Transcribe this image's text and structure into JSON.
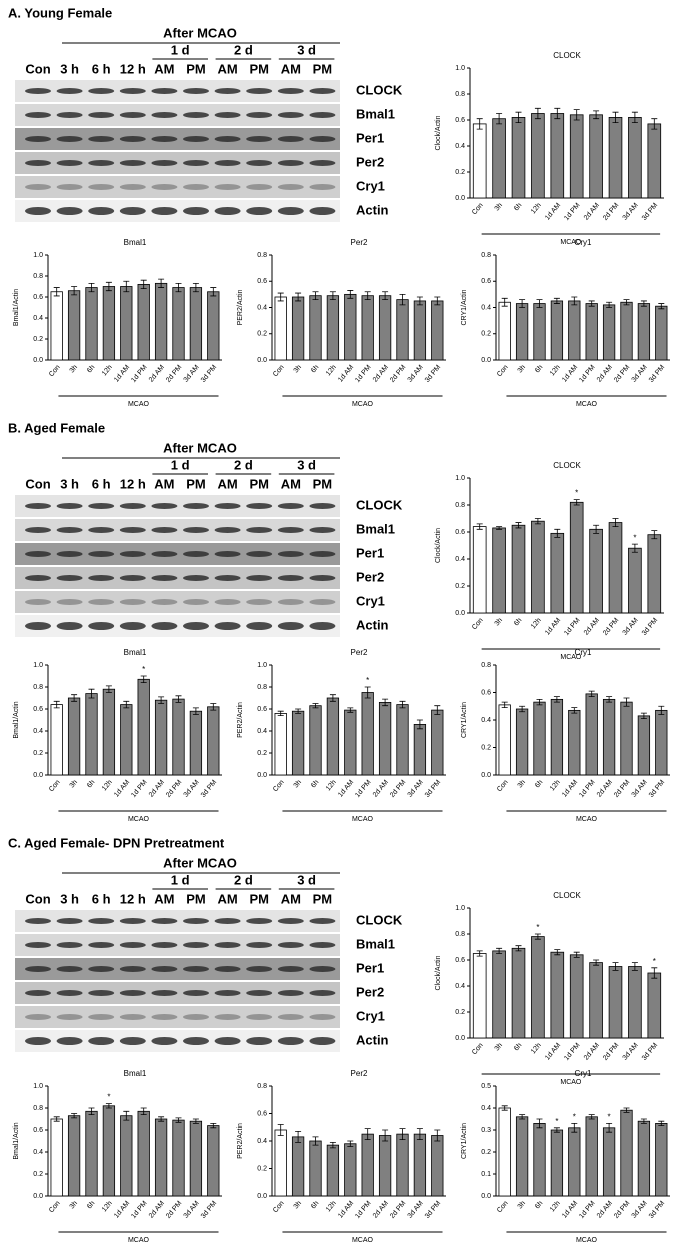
{
  "panels": [
    {
      "title": "A.  Young Female",
      "blot": {
        "header": "After MCAO",
        "days": [
          "1 d",
          "2 d",
          "3 d"
        ],
        "lanes": [
          "Con",
          "3 h",
          "6 h",
          "12 h",
          "AM",
          "PM",
          "AM",
          "PM",
          "AM",
          "PM"
        ],
        "rows": [
          "CLOCK",
          "Bmal1",
          "Per1",
          "Per2",
          "Cry1",
          "Actin"
        ]
      }
    },
    {
      "title": "B.  Aged Female",
      "blot": {
        "header": "After MCAO",
        "days": [
          "1 d",
          "2 d",
          "3 d"
        ],
        "lanes": [
          "Con",
          "3 h",
          "6 h",
          "12 h",
          "AM",
          "PM",
          "AM",
          "PM",
          "AM",
          "PM"
        ],
        "rows": [
          "CLOCK",
          "Bmal1",
          "Per1",
          "Per2",
          "Cry1",
          "Actin"
        ]
      }
    },
    {
      "title": "C.  Aged Female- DPN Pretreatment",
      "blot": {
        "header": "After MCAO",
        "days": [
          "1 d",
          "2 d",
          "3 d"
        ],
        "lanes": [
          "Con",
          "3 h",
          "6 h",
          "12 h",
          "AM",
          "PM",
          "AM",
          "PM",
          "AM",
          "PM"
        ],
        "rows": [
          "CLOCK",
          "Bmal1",
          "Per1",
          "Per2",
          "Cry1",
          "Actin"
        ]
      }
    }
  ],
  "chart_data": [
    {
      "type": "bar",
      "title": "CLOCK",
      "ylabel": "Clock/Actin",
      "group_label": "MCAO",
      "color": "#808080",
      "control_color": "#ffffff",
      "categories": [
        "Con",
        "3h",
        "6h",
        "12h",
        "1d AM",
        "1d PM",
        "2d AM",
        "2d PM",
        "3d AM",
        "3d PM"
      ],
      "values": [
        0.57,
        0.61,
        0.62,
        0.65,
        0.65,
        0.64,
        0.64,
        0.62,
        0.62,
        0.57
      ],
      "errors": [
        0.04,
        0.04,
        0.04,
        0.04,
        0.04,
        0.04,
        0.03,
        0.04,
        0.04,
        0.04
      ],
      "significance": [
        null,
        null,
        null,
        null,
        null,
        null,
        null,
        null,
        null,
        null
      ],
      "ylim": [
        0,
        1
      ],
      "yticks": [
        {
          "value": 0,
          "label": "0.0"
        },
        0.2,
        0.4,
        0.6,
        0.8,
        {
          "value": 1,
          "label": "1.0"
        }
      ]
    },
    {
      "type": "bar",
      "title": "Bmal1",
      "ylabel": "Bmal1/Actin",
      "group_label": "MCAO",
      "color": "#808080",
      "control_color": "#ffffff",
      "categories": [
        "Con",
        "3h",
        "6h",
        "12h",
        "1d AM",
        "1d PM",
        "2d AM",
        "2d PM",
        "3d AM",
        "3d PM"
      ],
      "values": [
        0.65,
        0.66,
        0.69,
        0.7,
        0.7,
        0.72,
        0.73,
        0.69,
        0.69,
        0.65
      ],
      "errors": [
        0.04,
        0.04,
        0.04,
        0.04,
        0.05,
        0.04,
        0.04,
        0.04,
        0.04,
        0.04
      ],
      "significance": [
        null,
        null,
        null,
        null,
        null,
        null,
        null,
        null,
        null,
        null
      ],
      "ylim": [
        0,
        1
      ],
      "yticks": [
        {
          "value": 0,
          "label": "0.0"
        },
        0.2,
        0.4,
        0.6,
        0.8,
        {
          "value": 1,
          "label": "1.0"
        }
      ]
    },
    {
      "type": "bar",
      "title": "Per2",
      "ylabel": "PER2/Actin",
      "group_label": "MCAO",
      "color": "#808080",
      "control_color": "#ffffff",
      "categories": [
        "Con",
        "3h",
        "6h",
        "12h",
        "1d AM",
        "1d PM",
        "2d AM",
        "2d PM",
        "3d AM",
        "3d PM"
      ],
      "values": [
        0.48,
        0.48,
        0.49,
        0.49,
        0.5,
        0.49,
        0.49,
        0.46,
        0.45,
        0.45
      ],
      "errors": [
        0.03,
        0.03,
        0.03,
        0.03,
        0.03,
        0.03,
        0.03,
        0.04,
        0.03,
        0.03
      ],
      "significance": [
        null,
        null,
        null,
        null,
        null,
        null,
        null,
        null,
        null,
        null
      ],
      "ylim": [
        0,
        0.8
      ],
      "yticks": [
        {
          "value": 0,
          "label": "0.0"
        },
        0.2,
        0.4,
        0.6,
        0.8
      ]
    },
    {
      "type": "bar",
      "title": "Cry1",
      "ylabel": "CRY1/Actin",
      "group_label": "MCAO",
      "color": "#808080",
      "control_color": "#ffffff",
      "categories": [
        "Con",
        "3h",
        "6h",
        "12h",
        "1d AM",
        "1d PM",
        "2d AM",
        "2d PM",
        "3d AM",
        "3d PM"
      ],
      "values": [
        0.44,
        0.43,
        0.43,
        0.45,
        0.45,
        0.43,
        0.42,
        0.44,
        0.43,
        0.41
      ],
      "errors": [
        0.03,
        0.03,
        0.03,
        0.02,
        0.03,
        0.02,
        0.02,
        0.02,
        0.02,
        0.02
      ],
      "significance": [
        null,
        null,
        null,
        null,
        null,
        null,
        null,
        null,
        null,
        null
      ],
      "ylim": [
        0,
        0.8
      ],
      "yticks": [
        {
          "value": 0,
          "label": "0.0"
        },
        0.2,
        0.4,
        0.6,
        0.8
      ]
    },
    {
      "type": "bar",
      "title": "CLOCK",
      "ylabel": "Clock/Actin",
      "group_label": "MCAO",
      "color": "#808080",
      "control_color": "#ffffff",
      "categories": [
        "Con",
        "3h",
        "6h",
        "12h",
        "1d AM",
        "1d PM",
        "2d AM",
        "2d PM",
        "3d AM",
        "3d PM"
      ],
      "values": [
        0.64,
        0.63,
        0.65,
        0.68,
        0.59,
        0.82,
        0.62,
        0.67,
        0.48,
        0.58
      ],
      "errors": [
        0.02,
        0.01,
        0.02,
        0.02,
        0.03,
        0.02,
        0.03,
        0.03,
        0.03,
        0.03
      ],
      "significance": [
        null,
        null,
        null,
        null,
        null,
        "*",
        null,
        null,
        "*",
        null
      ],
      "ylim": [
        0,
        1
      ],
      "yticks": [
        {
          "value": 0,
          "label": "0.0"
        },
        0.2,
        0.4,
        0.6,
        0.8,
        {
          "value": 1,
          "label": "1.0"
        }
      ]
    },
    {
      "type": "bar",
      "title": "Bmal1",
      "ylabel": "Bmal1/Actin",
      "group_label": "MCAO",
      "color": "#808080",
      "control_color": "#ffffff",
      "categories": [
        "Con",
        "3h",
        "6h",
        "12h",
        "1d AM",
        "1d PM",
        "2d AM",
        "2d PM",
        "3d AM",
        "3d PM"
      ],
      "values": [
        0.64,
        0.7,
        0.74,
        0.78,
        0.64,
        0.87,
        0.68,
        0.69,
        0.58,
        0.62
      ],
      "errors": [
        0.03,
        0.03,
        0.04,
        0.03,
        0.03,
        0.03,
        0.03,
        0.03,
        0.03,
        0.03
      ],
      "significance": [
        null,
        null,
        null,
        null,
        null,
        "*",
        null,
        null,
        null,
        null
      ],
      "ylim": [
        0,
        1
      ],
      "yticks": [
        {
          "value": 0,
          "label": "0.0"
        },
        0.2,
        0.4,
        0.6,
        0.8,
        {
          "value": 1,
          "label": "1.0"
        }
      ]
    },
    {
      "type": "bar",
      "title": "Per2",
      "ylabel": "PER2/Actin",
      "group_label": "MCAO",
      "color": "#808080",
      "control_color": "#ffffff",
      "categories": [
        "Con",
        "3h",
        "6h",
        "12h",
        "1d AM",
        "1d PM",
        "2d AM",
        "2d PM",
        "3d AM",
        "3d PM"
      ],
      "values": [
        0.56,
        0.58,
        0.63,
        0.7,
        0.59,
        0.75,
        0.66,
        0.64,
        0.46,
        0.59
      ],
      "errors": [
        0.02,
        0.02,
        0.02,
        0.03,
        0.02,
        0.05,
        0.03,
        0.03,
        0.04,
        0.04
      ],
      "significance": [
        null,
        null,
        null,
        null,
        null,
        "*",
        null,
        null,
        null,
        null
      ],
      "ylim": [
        0,
        1
      ],
      "yticks": [
        {
          "value": 0,
          "label": "0.0"
        },
        0.2,
        0.4,
        0.6,
        0.8,
        {
          "value": 1,
          "label": "1.0"
        }
      ]
    },
    {
      "type": "bar",
      "title": "Cry1",
      "ylabel": "CRY1/Actin",
      "group_label": "MCAO",
      "color": "#808080",
      "control_color": "#ffffff",
      "categories": [
        "Con",
        "3h",
        "6h",
        "12h",
        "1d AM",
        "1d PM",
        "2d AM",
        "2d PM",
        "3d AM",
        "3d PM"
      ],
      "values": [
        0.51,
        0.48,
        0.53,
        0.55,
        0.47,
        0.59,
        0.55,
        0.53,
        0.43,
        0.47
      ],
      "errors": [
        0.02,
        0.02,
        0.02,
        0.02,
        0.02,
        0.02,
        0.02,
        0.03,
        0.02,
        0.03
      ],
      "significance": [
        null,
        null,
        null,
        null,
        null,
        null,
        null,
        null,
        null,
        null
      ],
      "ylim": [
        0,
        0.8
      ],
      "yticks": [
        {
          "value": 0,
          "label": "0.0"
        },
        0.2,
        0.4,
        0.6,
        0.8
      ]
    },
    {
      "type": "bar",
      "title": "CLOCK",
      "ylabel": "Clock/Actin",
      "group_label": "MCAO",
      "color": "#808080",
      "control_color": "#ffffff",
      "categories": [
        "Con",
        "3h",
        "6h",
        "12h",
        "1d AM",
        "1d PM",
        "2d AM",
        "2d PM",
        "3d AM",
        "3d PM"
      ],
      "values": [
        0.65,
        0.67,
        0.69,
        0.78,
        0.66,
        0.64,
        0.58,
        0.55,
        0.55,
        0.5
      ],
      "errors": [
        0.02,
        0.02,
        0.02,
        0.02,
        0.02,
        0.02,
        0.02,
        0.03,
        0.03,
        0.04
      ],
      "significance": [
        null,
        null,
        null,
        "*",
        null,
        null,
        null,
        null,
        null,
        "*"
      ],
      "ylim": [
        0,
        1
      ],
      "yticks": [
        {
          "value": 0,
          "label": "0.0"
        },
        0.2,
        0.4,
        0.6,
        0.8,
        {
          "value": 1,
          "label": "1.0"
        }
      ]
    },
    {
      "type": "bar",
      "title": "Bmal1",
      "ylabel": "Bmal1/Actin",
      "group_label": "MCAO",
      "color": "#808080",
      "control_color": "#ffffff",
      "categories": [
        "Con",
        "3h",
        "6h",
        "12h",
        "1d AM",
        "1d PM",
        "2d AM",
        "2d PM",
        "3d AM",
        "3d PM"
      ],
      "values": [
        0.7,
        0.73,
        0.77,
        0.82,
        0.73,
        0.77,
        0.7,
        0.69,
        0.68,
        0.64
      ],
      "errors": [
        0.02,
        0.02,
        0.03,
        0.02,
        0.04,
        0.03,
        0.02,
        0.02,
        0.02,
        0.02
      ],
      "significance": [
        null,
        null,
        null,
        "*",
        null,
        null,
        null,
        null,
        null,
        null
      ],
      "ylim": [
        0,
        1
      ],
      "yticks": [
        {
          "value": 0,
          "label": "0.0"
        },
        0.2,
        0.4,
        0.6,
        0.8,
        {
          "value": 1,
          "label": "1.0"
        }
      ]
    },
    {
      "type": "bar",
      "title": "Per2",
      "ylabel": "PER2/Actin",
      "group_label": "MCAO",
      "color": "#808080",
      "control_color": "#ffffff",
      "categories": [
        "Con",
        "3h",
        "6h",
        "12h",
        "1d AM",
        "1d PM",
        "2d AM",
        "2d PM",
        "3d AM",
        "3d PM"
      ],
      "values": [
        0.48,
        0.43,
        0.4,
        0.37,
        0.38,
        0.45,
        0.44,
        0.45,
        0.45,
        0.44
      ],
      "errors": [
        0.04,
        0.04,
        0.03,
        0.02,
        0.02,
        0.04,
        0.04,
        0.04,
        0.04,
        0.04
      ],
      "significance": [
        null,
        null,
        null,
        null,
        null,
        null,
        null,
        null,
        null,
        null
      ],
      "ylim": [
        0,
        0.8
      ],
      "yticks": [
        {
          "value": 0,
          "label": "0.0"
        },
        0.2,
        0.4,
        0.6,
        0.8
      ]
    },
    {
      "type": "bar",
      "title": "Cry1",
      "ylabel": "CRY1/Actin",
      "group_label": "MCAO",
      "color": "#808080",
      "control_color": "#ffffff",
      "categories": [
        "Con",
        "3h",
        "6h",
        "12h",
        "1d AM",
        "1d PM",
        "2d AM",
        "2d PM",
        "3d AM",
        "3d PM"
      ],
      "values": [
        0.4,
        0.36,
        0.33,
        0.3,
        0.31,
        0.36,
        0.31,
        0.39,
        0.34,
        0.33
      ],
      "errors": [
        0.01,
        0.01,
        0.02,
        0.01,
        0.02,
        0.01,
        0.02,
        0.01,
        0.01,
        0.01
      ],
      "significance": [
        null,
        null,
        null,
        "*",
        "*",
        null,
        "*",
        null,
        null,
        null
      ],
      "ylim": [
        0,
        0.5
      ],
      "yticks": [
        {
          "value": 0,
          "label": "0.0"
        },
        0.1,
        0.2,
        0.3,
        0.4,
        0.5
      ]
    }
  ]
}
